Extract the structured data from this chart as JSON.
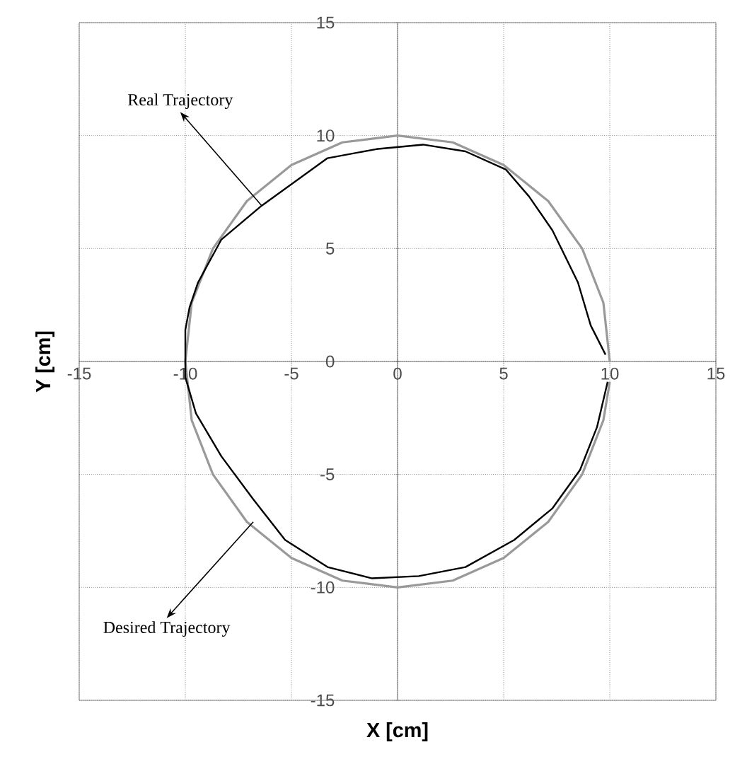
{
  "chart_data": {
    "type": "line",
    "xlabel": "X [cm]",
    "ylabel": "Y [cm]",
    "annotations": [
      {
        "text": "Real Trajectory",
        "x": -6.4,
        "y": 6.9
      },
      {
        "text": "Desired Trajectory",
        "x": -6.8,
        "y": -7.1
      }
    ],
    "xlim": [
      -15,
      15
    ],
    "ylim": [
      -15,
      15
    ],
    "xticks": [
      -15,
      -10,
      -5,
      0,
      5,
      10,
      15
    ],
    "yticks": [
      -15,
      -10,
      -5,
      0,
      5,
      10,
      15
    ],
    "grid": true,
    "series": [
      {
        "color": "#999999",
        "x": [
          10,
          9.7,
          8.7,
          7.1,
          5,
          2.6,
          0,
          -2.6,
          -5,
          -7.1,
          -8.7,
          -9.7,
          -10,
          -9.7,
          -8.7,
          -7.1,
          -5,
          -2.6,
          0,
          2.6,
          5,
          7.1,
          8.7,
          9.7,
          10
        ],
        "values": [
          0,
          2.6,
          5,
          7.1,
          8.7,
          9.7,
          10,
          9.7,
          8.7,
          7.1,
          5,
          2.6,
          0,
          -2.6,
          -5,
          -7.1,
          -8.7,
          -9.7,
          -10,
          -9.7,
          -8.7,
          -7.1,
          -5,
          -2.6,
          -0.9
        ]
      },
      {
        "color": "#000000",
        "x": [
          9.8,
          9.1,
          8.5,
          7.3,
          6.2,
          5.1,
          3.2,
          1.2,
          -1.0,
          -3.3,
          -6.4,
          -8.3,
          -9.4,
          -9.8,
          -10,
          -10,
          -9.5,
          -8.3,
          -6.8,
          -5.3,
          -3.3,
          -1.2,
          1.0,
          3.2,
          5.5,
          7.3,
          8.6,
          9.4,
          9.9
        ],
        "values": [
          0.3,
          1.6,
          3.5,
          5.8,
          7.3,
          8.5,
          9.3,
          9.6,
          9.4,
          9.0,
          6.9,
          5.4,
          3.5,
          2.4,
          1.4,
          -0.7,
          -2.3,
          -4.2,
          -6.1,
          -7.9,
          -9.1,
          -9.6,
          -9.5,
          -9.1,
          -7.9,
          -6.5,
          -4.8,
          -2.9,
          -0.9
        ]
      }
    ]
  }
}
